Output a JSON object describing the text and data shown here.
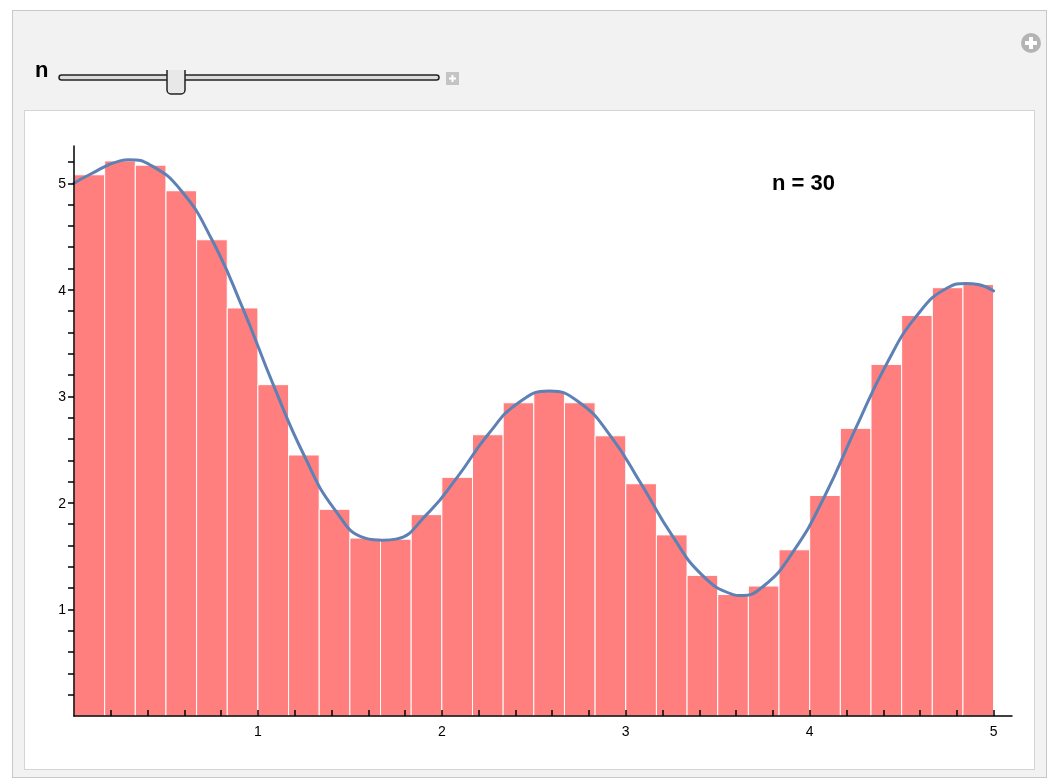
{
  "chart_data": {
    "type": "histogram",
    "annotations": [
      "n = 30",
      "n"
    ],
    "bins": [
      0,
      0.1667,
      0.3333,
      0.5,
      0.6667,
      0.8333,
      1,
      1.1667,
      1.3333,
      1.5,
      1.6667,
      1.8333,
      2,
      2.1667,
      2.3333,
      2.5,
      2.6667,
      2.8333,
      3,
      3.1667,
      3.3333,
      3.5,
      3.6667,
      3.8333,
      4,
      4.1667,
      4.3333,
      4.5,
      4.6667,
      4.8333,
      5
    ],
    "series": [
      {
        "color": "#ff7f7f",
        "values": [
          5.08,
          5.21,
          5.17,
          4.93,
          4.47,
          3.83,
          3.11,
          2.45,
          1.94,
          1.67,
          1.66,
          1.89,
          2.24,
          2.64,
          2.94,
          3.05,
          2.94,
          2.63,
          2.18,
          1.7,
          1.32,
          1.14,
          1.22,
          1.56,
          2.07,
          2.7,
          3.3,
          3.76,
          4.02,
          4.05
        ]
      },
      {
        "type": "line",
        "color": "#5e81b5",
        "x": [
          0,
          0.0833,
          0.25,
          0.3,
          0.4167,
          0.5833,
          0.75,
          0.9167,
          1.0833,
          1.25,
          1.4167,
          1.5833,
          1.68,
          1.75,
          1.9167,
          2.0833,
          2.25,
          2.4167,
          2.5833,
          2.75,
          2.9167,
          3.0833,
          3.25,
          3.4167,
          3.5833,
          3.62,
          3.75,
          3.9167,
          4.0833,
          4.25,
          4.4167,
          4.5833,
          4.75,
          4.85,
          4.9167,
          5
        ],
        "values": [
          5.0,
          5.08,
          5.21,
          5.22,
          5.17,
          4.93,
          4.47,
          3.83,
          3.11,
          2.45,
          1.94,
          1.67,
          1.65,
          1.66,
          1.89,
          2.24,
          2.64,
          2.94,
          3.05,
          2.94,
          2.63,
          2.18,
          1.7,
          1.32,
          1.14,
          1.13,
          1.22,
          1.56,
          2.07,
          2.7,
          3.3,
          3.76,
          4.02,
          4.06,
          4.05,
          3.99
        ]
      }
    ],
    "xlim": [
      0,
      5.1
    ],
    "ylim": [
      0,
      5.35
    ],
    "xticks": [
      {
        "value": 0.2,
        "label": null
      },
      {
        "value": 0.4,
        "label": null
      },
      {
        "value": 0.6,
        "label": null
      },
      {
        "value": 0.8,
        "label": null
      },
      1,
      {
        "value": 1.2,
        "label": null
      },
      {
        "value": 1.4,
        "label": null
      },
      {
        "value": 1.6,
        "label": null
      },
      {
        "value": 1.8,
        "label": null
      },
      2,
      {
        "value": 2.2,
        "label": null
      },
      {
        "value": 2.4,
        "label": null
      },
      {
        "value": 2.6,
        "label": null
      },
      {
        "value": 2.8,
        "label": null
      },
      3,
      {
        "value": 3.2,
        "label": null
      },
      {
        "value": 3.4,
        "label": null
      },
      {
        "value": 3.6,
        "label": null
      },
      {
        "value": 3.8,
        "label": null
      },
      4,
      {
        "value": 4.2,
        "label": null
      },
      {
        "value": 4.4,
        "label": null
      },
      {
        "value": 4.6,
        "label": null
      },
      {
        "value": 4.8,
        "label": null
      },
      5
    ],
    "yticks": [
      {
        "value": 0.2,
        "label": null
      },
      {
        "value": 0.4,
        "label": null
      },
      {
        "value": 0.6,
        "label": null
      },
      {
        "value": 0.8,
        "label": null
      },
      1,
      {
        "value": 1.2,
        "label": null
      },
      {
        "value": 1.4,
        "label": null
      },
      {
        "value": 1.6,
        "label": null
      },
      {
        "value": 1.8,
        "label": null
      },
      2,
      {
        "value": 2.2,
        "label": null
      },
      {
        "value": 2.4,
        "label": null
      },
      {
        "value": 2.6,
        "label": null
      },
      {
        "value": 2.8,
        "label": null
      },
      3,
      {
        "value": 3.2,
        "label": null
      },
      {
        "value": 3.4,
        "label": null
      },
      {
        "value": 3.6,
        "label": null
      },
      {
        "value": 3.8,
        "label": null
      },
      4,
      {
        "value": 4.2,
        "label": null
      },
      {
        "value": 4.4,
        "label": null
      },
      {
        "value": 4.6,
        "label": null
      },
      {
        "value": 4.8,
        "label": null
      },
      5,
      {
        "value": 5.2,
        "label": null
      }
    ],
    "grid": false
  }
}
